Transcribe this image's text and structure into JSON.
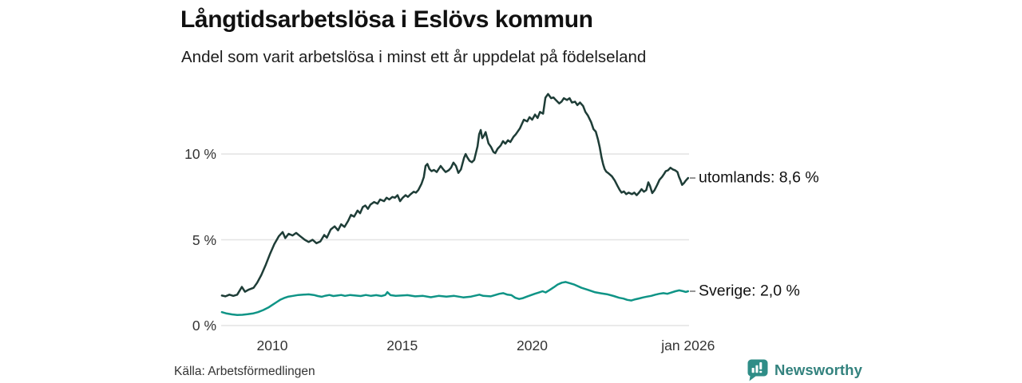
{
  "header": {
    "title": "Långtidsarbetslösa i Eslövs kommun",
    "subtitle": "Andel som varit arbetslösa i minst ett år uppdelat på födelseland"
  },
  "footer": {
    "source": "Källa: Arbetsförmedlingen",
    "brand": "Newsworthy"
  },
  "colors": {
    "utomlands_line": "#1e3d37",
    "sverige_line": "#0f9486",
    "grid": "#e4e4e4",
    "label_dash": "#8a8a8a",
    "axis_text": "#333333",
    "brand_teal": "#33827e"
  },
  "chart_data": {
    "type": "line",
    "title": "Långtidsarbetslösa i Eslövs kommun",
    "subtitle": "Andel som varit arbetslösa i minst ett år uppdelat på födelseland",
    "source": "Källa: Arbetsförmedlingen",
    "grid": true,
    "legend_position": "right-end-labels",
    "x_axis": {
      "range": [
        2008.06,
        2026.0
      ],
      "ticks": [
        {
          "label": "2010",
          "x": 2010.0
        },
        {
          "label": "2015",
          "x": 2015.0
        },
        {
          "label": "2020",
          "x": 2020.0
        },
        {
          "label": "jan 2026",
          "x": 2026.0
        }
      ]
    },
    "y_axis": {
      "unit": "%",
      "range": [
        0,
        14
      ],
      "ticks": [
        {
          "label": "0 %",
          "value": 0
        },
        {
          "label": "5 %",
          "value": 5
        },
        {
          "label": "10 %",
          "value": 10
        }
      ]
    },
    "series": [
      {
        "name": "utomlands",
        "end_label": "utomlands: 8,6 %",
        "end_value_text": "8,6 %",
        "color": "#1e3d37",
        "points": [
          [
            2008.06,
            1.75
          ],
          [
            2008.2,
            1.7
          ],
          [
            2008.35,
            1.8
          ],
          [
            2008.5,
            1.73
          ],
          [
            2008.65,
            1.8
          ],
          [
            2008.83,
            2.25
          ],
          [
            2008.95,
            1.97
          ],
          [
            2009.1,
            2.1
          ],
          [
            2009.28,
            2.2
          ],
          [
            2009.42,
            2.5
          ],
          [
            2009.58,
            2.95
          ],
          [
            2009.75,
            3.55
          ],
          [
            2009.92,
            4.2
          ],
          [
            2010.08,
            4.75
          ],
          [
            2010.25,
            5.2
          ],
          [
            2010.4,
            5.45
          ],
          [
            2010.5,
            5.1
          ],
          [
            2010.63,
            5.35
          ],
          [
            2010.78,
            5.25
          ],
          [
            2010.92,
            5.4
          ],
          [
            2011.08,
            5.2
          ],
          [
            2011.25,
            5.0
          ],
          [
            2011.4,
            4.87
          ],
          [
            2011.55,
            5.0
          ],
          [
            2011.7,
            4.8
          ],
          [
            2011.85,
            4.9
          ],
          [
            2012.0,
            5.28
          ],
          [
            2012.1,
            5.12
          ],
          [
            2012.25,
            5.6
          ],
          [
            2012.4,
            5.78
          ],
          [
            2012.53,
            5.55
          ],
          [
            2012.65,
            5.9
          ],
          [
            2012.78,
            5.75
          ],
          [
            2012.92,
            6.1
          ],
          [
            2013.03,
            6.45
          ],
          [
            2013.15,
            6.35
          ],
          [
            2013.28,
            6.7
          ],
          [
            2013.38,
            6.55
          ],
          [
            2013.48,
            6.9
          ],
          [
            2013.58,
            7.0
          ],
          [
            2013.68,
            6.8
          ],
          [
            2013.78,
            7.05
          ],
          [
            2013.92,
            7.2
          ],
          [
            2014.05,
            7.1
          ],
          [
            2014.15,
            7.35
          ],
          [
            2014.3,
            7.25
          ],
          [
            2014.4,
            7.45
          ],
          [
            2014.5,
            7.35
          ],
          [
            2014.62,
            7.5
          ],
          [
            2014.72,
            7.45
          ],
          [
            2014.82,
            7.6
          ],
          [
            2014.92,
            7.25
          ],
          [
            2015.02,
            7.45
          ],
          [
            2015.13,
            7.6
          ],
          [
            2015.22,
            7.5
          ],
          [
            2015.32,
            7.65
          ],
          [
            2015.44,
            7.8
          ],
          [
            2015.53,
            7.75
          ],
          [
            2015.62,
            7.9
          ],
          [
            2015.74,
            8.25
          ],
          [
            2015.83,
            8.65
          ],
          [
            2015.9,
            9.3
          ],
          [
            2015.97,
            9.42
          ],
          [
            2016.05,
            9.12
          ],
          [
            2016.13,
            9.0
          ],
          [
            2016.22,
            9.07
          ],
          [
            2016.33,
            8.95
          ],
          [
            2016.48,
            9.3
          ],
          [
            2016.57,
            9.12
          ],
          [
            2016.67,
            8.95
          ],
          [
            2016.79,
            9.05
          ],
          [
            2016.88,
            9.2
          ],
          [
            2016.97,
            9.5
          ],
          [
            2017.07,
            9.3
          ],
          [
            2017.16,
            8.9
          ],
          [
            2017.26,
            9.1
          ],
          [
            2017.38,
            9.78
          ],
          [
            2017.44,
            10.0
          ],
          [
            2017.5,
            9.82
          ],
          [
            2017.59,
            9.6
          ],
          [
            2017.68,
            9.52
          ],
          [
            2017.77,
            9.65
          ],
          [
            2017.9,
            10.45
          ],
          [
            2017.96,
            11.15
          ],
          [
            2018.02,
            11.4
          ],
          [
            2018.08,
            10.92
          ],
          [
            2018.14,
            11.05
          ],
          [
            2018.21,
            11.28
          ],
          [
            2018.32,
            10.62
          ],
          [
            2018.42,
            10.4
          ],
          [
            2018.51,
            10.12
          ],
          [
            2018.58,
            10.05
          ],
          [
            2018.67,
            10.3
          ],
          [
            2018.79,
            10.5
          ],
          [
            2018.88,
            10.75
          ],
          [
            2018.97,
            10.6
          ],
          [
            2019.07,
            10.8
          ],
          [
            2019.16,
            10.7
          ],
          [
            2019.28,
            11.0
          ],
          [
            2019.37,
            11.15
          ],
          [
            2019.53,
            11.5
          ],
          [
            2019.68,
            12.0
          ],
          [
            2019.81,
            11.9
          ],
          [
            2019.9,
            12.15
          ],
          [
            2020.0,
            12.0
          ],
          [
            2020.11,
            12.3
          ],
          [
            2020.21,
            12.1
          ],
          [
            2020.3,
            12.45
          ],
          [
            2020.42,
            12.35
          ],
          [
            2020.51,
            13.28
          ],
          [
            2020.61,
            13.5
          ],
          [
            2020.73,
            13.25
          ],
          [
            2020.82,
            13.3
          ],
          [
            2020.91,
            13.15
          ],
          [
            2021.04,
            12.95
          ],
          [
            2021.13,
            13.05
          ],
          [
            2021.22,
            13.25
          ],
          [
            2021.34,
            13.15
          ],
          [
            2021.44,
            13.25
          ],
          [
            2021.53,
            13.0
          ],
          [
            2021.65,
            13.05
          ],
          [
            2021.74,
            12.85
          ],
          [
            2021.84,
            13.0
          ],
          [
            2021.96,
            12.8
          ],
          [
            2022.05,
            12.45
          ],
          [
            2022.14,
            12.25
          ],
          [
            2022.27,
            11.85
          ],
          [
            2022.36,
            11.45
          ],
          [
            2022.45,
            11.3
          ],
          [
            2022.53,
            10.85
          ],
          [
            2022.6,
            10.4
          ],
          [
            2022.67,
            9.8
          ],
          [
            2022.73,
            9.4
          ],
          [
            2022.79,
            9.12
          ],
          [
            2022.85,
            8.97
          ],
          [
            2022.94,
            8.87
          ],
          [
            2023.07,
            8.7
          ],
          [
            2023.18,
            8.45
          ],
          [
            2023.28,
            8.15
          ],
          [
            2023.37,
            7.9
          ],
          [
            2023.44,
            7.75
          ],
          [
            2023.53,
            7.82
          ],
          [
            2023.62,
            7.66
          ],
          [
            2023.71,
            7.75
          ],
          [
            2023.84,
            7.66
          ],
          [
            2023.93,
            7.75
          ],
          [
            2024.02,
            7.6
          ],
          [
            2024.11,
            7.75
          ],
          [
            2024.21,
            7.95
          ],
          [
            2024.3,
            7.8
          ],
          [
            2024.39,
            7.9
          ],
          [
            2024.47,
            8.35
          ],
          [
            2024.53,
            8.15
          ],
          [
            2024.62,
            7.72
          ],
          [
            2024.71,
            7.9
          ],
          [
            2024.81,
            8.2
          ],
          [
            2024.9,
            8.5
          ],
          [
            2025.0,
            8.67
          ],
          [
            2025.08,
            8.85
          ],
          [
            2025.14,
            9.0
          ],
          [
            2025.23,
            9.05
          ],
          [
            2025.32,
            9.2
          ],
          [
            2025.41,
            9.1
          ],
          [
            2025.5,
            9.05
          ],
          [
            2025.59,
            8.95
          ],
          [
            2025.65,
            8.67
          ],
          [
            2025.71,
            8.45
          ],
          [
            2025.77,
            8.2
          ],
          [
            2025.84,
            8.3
          ],
          [
            2025.91,
            8.45
          ],
          [
            2026.0,
            8.6
          ]
        ]
      },
      {
        "name": "Sverige",
        "end_label": "Sverige: 2,0 %",
        "end_value_text": "2,0 %",
        "color": "#0f9486",
        "points": [
          [
            2008.06,
            0.78
          ],
          [
            2008.25,
            0.7
          ],
          [
            2008.45,
            0.65
          ],
          [
            2008.65,
            0.62
          ],
          [
            2008.85,
            0.63
          ],
          [
            2009.05,
            0.66
          ],
          [
            2009.25,
            0.7
          ],
          [
            2009.45,
            0.78
          ],
          [
            2009.65,
            0.9
          ],
          [
            2009.85,
            1.05
          ],
          [
            2010.0,
            1.2
          ],
          [
            2010.15,
            1.35
          ],
          [
            2010.3,
            1.5
          ],
          [
            2010.45,
            1.6
          ],
          [
            2010.6,
            1.68
          ],
          [
            2010.8,
            1.73
          ],
          [
            2011.0,
            1.78
          ],
          [
            2011.2,
            1.8
          ],
          [
            2011.4,
            1.82
          ],
          [
            2011.6,
            1.78
          ],
          [
            2011.75,
            1.72
          ],
          [
            2011.9,
            1.68
          ],
          [
            2012.05,
            1.74
          ],
          [
            2012.2,
            1.78
          ],
          [
            2012.35,
            1.72
          ],
          [
            2012.5,
            1.75
          ],
          [
            2012.65,
            1.78
          ],
          [
            2012.8,
            1.73
          ],
          [
            2013.0,
            1.78
          ],
          [
            2013.2,
            1.75
          ],
          [
            2013.4,
            1.72
          ],
          [
            2013.6,
            1.78
          ],
          [
            2013.8,
            1.73
          ],
          [
            2014.0,
            1.77
          ],
          [
            2014.2,
            1.72
          ],
          [
            2014.35,
            1.78
          ],
          [
            2014.43,
            1.95
          ],
          [
            2014.55,
            1.77
          ],
          [
            2014.75,
            1.73
          ],
          [
            2014.95,
            1.75
          ],
          [
            2015.2,
            1.77
          ],
          [
            2015.5,
            1.7
          ],
          [
            2015.8,
            1.73
          ],
          [
            2016.1,
            1.65
          ],
          [
            2016.4,
            1.73
          ],
          [
            2016.7,
            1.69
          ],
          [
            2017.0,
            1.73
          ],
          [
            2017.35,
            1.64
          ],
          [
            2017.65,
            1.69
          ],
          [
            2017.97,
            1.8
          ],
          [
            2018.12,
            1.73
          ],
          [
            2018.4,
            1.7
          ],
          [
            2018.74,
            1.85
          ],
          [
            2018.89,
            1.89
          ],
          [
            2019.05,
            1.8
          ],
          [
            2019.2,
            1.77
          ],
          [
            2019.35,
            1.62
          ],
          [
            2019.5,
            1.55
          ],
          [
            2019.65,
            1.6
          ],
          [
            2019.8,
            1.69
          ],
          [
            2019.95,
            1.77
          ],
          [
            2020.1,
            1.85
          ],
          [
            2020.25,
            1.92
          ],
          [
            2020.4,
            2.0
          ],
          [
            2020.52,
            1.93
          ],
          [
            2020.68,
            2.08
          ],
          [
            2020.83,
            2.23
          ],
          [
            2020.98,
            2.39
          ],
          [
            2021.14,
            2.5
          ],
          [
            2021.29,
            2.54
          ],
          [
            2021.45,
            2.47
          ],
          [
            2021.6,
            2.4
          ],
          [
            2021.9,
            2.2
          ],
          [
            2022.15,
            2.08
          ],
          [
            2022.4,
            1.95
          ],
          [
            2022.65,
            1.88
          ],
          [
            2022.9,
            1.82
          ],
          [
            2023.14,
            1.72
          ],
          [
            2023.35,
            1.62
          ],
          [
            2023.51,
            1.57
          ],
          [
            2023.66,
            1.5
          ],
          [
            2023.82,
            1.46
          ],
          [
            2023.97,
            1.53
          ],
          [
            2024.12,
            1.58
          ],
          [
            2024.28,
            1.64
          ],
          [
            2024.43,
            1.69
          ],
          [
            2024.58,
            1.73
          ],
          [
            2024.74,
            1.8
          ],
          [
            2024.89,
            1.85
          ],
          [
            2025.05,
            1.89
          ],
          [
            2025.2,
            1.85
          ],
          [
            2025.35,
            1.92
          ],
          [
            2025.51,
            2.0
          ],
          [
            2025.66,
            2.05
          ],
          [
            2025.82,
            2.0
          ],
          [
            2025.91,
            1.96
          ],
          [
            2026.0,
            2.0
          ]
        ]
      }
    ]
  }
}
